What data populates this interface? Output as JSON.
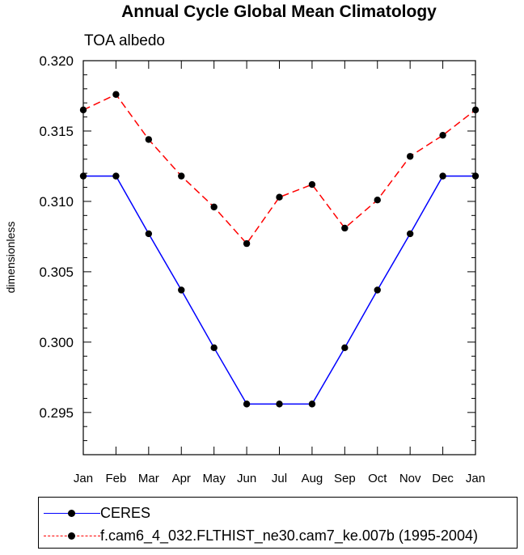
{
  "chart_data": {
    "type": "line",
    "title": "Annual Cycle Global Mean Climatology",
    "subtitle": "TOA albedo",
    "ylabel": "dimensionless",
    "xlabel": "",
    "categories": [
      "Jan",
      "Feb",
      "Mar",
      "Apr",
      "May",
      "Jun",
      "Jul",
      "Aug",
      "Sep",
      "Oct",
      "Nov",
      "Dec",
      "Jan"
    ],
    "ylim": [
      0.292,
      0.32
    ],
    "yticks": [
      "0.295",
      "0.300",
      "0.305",
      "0.310",
      "0.315",
      "0.320"
    ],
    "grid": false,
    "legend_placement": "bottom",
    "series": [
      {
        "name": "CERES",
        "color": "#0000ff",
        "dash": "solid",
        "marker": "filled-circle",
        "values": [
          0.3118,
          0.3118,
          0.3077,
          0.3037,
          0.2996,
          0.2956,
          0.2956,
          0.2956,
          0.2996,
          0.3037,
          0.3077,
          0.3118,
          0.3118
        ]
      },
      {
        "name": "f.cam6_4_032.FLTHIST_ne30.cam7_ke.007b (1995-2004)",
        "color": "#ff0000",
        "dash": "dashed",
        "marker": "filled-circle",
        "values": [
          0.3165,
          0.3176,
          0.3144,
          0.3118,
          0.3096,
          0.307,
          0.3103,
          0.3112,
          0.3081,
          0.3101,
          0.3132,
          0.3147,
          0.3165
        ]
      }
    ]
  }
}
